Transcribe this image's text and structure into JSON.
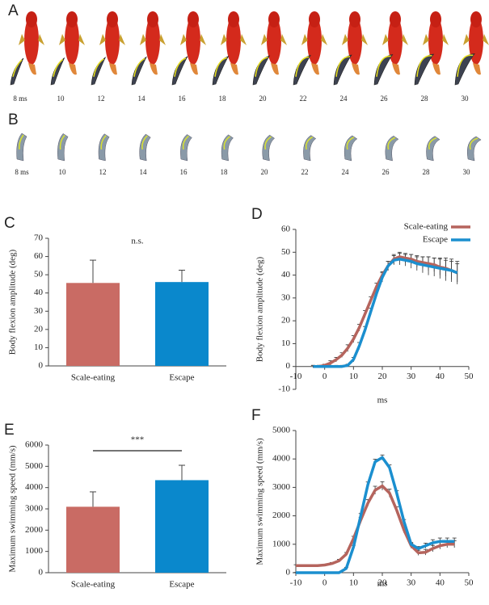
{
  "image_strips": [
    {
      "panel": "A",
      "time_labels": [
        "8 ms",
        "10",
        "12",
        "14",
        "16",
        "18",
        "20",
        "22",
        "24",
        "26",
        "28",
        "30"
      ]
    },
    {
      "panel": "B",
      "time_labels": [
        "8 ms",
        "10",
        "12",
        "14",
        "16",
        "18",
        "20",
        "22",
        "24",
        "26",
        "28",
        "30"
      ]
    }
  ],
  "chart_data": [
    {
      "type": "bar",
      "panel": "C",
      "ylabel": "Body flexion amplitude (deg)",
      "annotation": "n.s.",
      "categories": [
        "Scale-eating",
        "Escape"
      ],
      "values": [
        45.5,
        46
      ],
      "errors": [
        12.5,
        6.5
      ],
      "colors": [
        "#c96b64",
        "#0a88cc"
      ],
      "ylim": [
        0,
        70
      ],
      "yticks": [
        0,
        10,
        20,
        30,
        40,
        50,
        60,
        70
      ]
    },
    {
      "type": "line",
      "panel": "D",
      "ylabel": "Body flexion amplitude (deg)",
      "xlabel": "ms",
      "legend": "upper right",
      "x": [
        -4,
        -2,
        0,
        2,
        4,
        6,
        8,
        10,
        12,
        14,
        16,
        18,
        20,
        22,
        24,
        26,
        28,
        30,
        32,
        34,
        36,
        38,
        40,
        42,
        44,
        46
      ],
      "series": [
        {
          "name": "Scale-eating",
          "color": "#b5645d",
          "values": [
            0,
            0,
            0.5,
            1.5,
            3,
            5,
            8,
            12,
            17,
            23,
            29,
            35,
            40,
            44,
            47,
            48,
            47.5,
            47,
            46,
            45.5,
            45,
            44.5,
            43.5,
            43,
            42,
            41
          ],
          "errors": [
            0.5,
            0.5,
            0.5,
            1,
            1,
            1,
            1.5,
            1.5,
            1.5,
            1.5,
            1.5,
            1.5,
            1.5,
            2,
            2,
            2,
            2,
            2,
            2.5,
            2.5,
            3,
            3,
            3.5,
            3.5,
            4,
            4
          ]
        },
        {
          "name": "Escape",
          "color": "#1b8fcf",
          "values": [
            0,
            0,
            0,
            0,
            0,
            0,
            0.5,
            3,
            9,
            16,
            24,
            32,
            39,
            44,
            46.5,
            47,
            46.5,
            46,
            45,
            44.5,
            44,
            43.5,
            43,
            42.5,
            42,
            41
          ],
          "errors": [
            0.5,
            0.5,
            0.5,
            0.5,
            0.5,
            0.5,
            0.5,
            1,
            1.5,
            1.5,
            1.5,
            1.5,
            2,
            2,
            2,
            2.5,
            2.5,
            3,
            3,
            3.5,
            4,
            4,
            4.5,
            5,
            5,
            5
          ]
        }
      ],
      "xlim": [
        -10,
        50
      ],
      "xticks": [
        -10,
        0,
        10,
        20,
        30,
        40,
        50
      ],
      "ylim": [
        -10,
        60
      ],
      "yticks": [
        -10,
        0,
        10,
        20,
        30,
        40,
        50,
        60
      ]
    },
    {
      "type": "bar",
      "panel": "E",
      "ylabel": "Maximum swimming speed (mm/s)",
      "annotation": "***",
      "categories": [
        "Scale-eating",
        "Escape"
      ],
      "values": [
        3100,
        4350
      ],
      "errors": [
        700,
        700
      ],
      "colors": [
        "#c96b64",
        "#0a88cc"
      ],
      "ylim": [
        0,
        6000
      ],
      "yticks": [
        0,
        1000,
        2000,
        3000,
        4000,
        5000,
        6000
      ]
    },
    {
      "type": "line",
      "panel": "F",
      "ylabel": "Maximum swimming speed (mm/s)",
      "xlabel": "ms",
      "x": [
        -10,
        -7.5,
        -5,
        -2.5,
        0,
        2.5,
        5,
        7.5,
        10,
        12.5,
        15,
        17.5,
        20,
        22.5,
        25,
        27.5,
        30,
        32.5,
        35,
        37.5,
        40,
        42.5,
        45
      ],
      "series": [
        {
          "name": "Scale-eating",
          "color": "#b5645d",
          "values": [
            250,
            250,
            250,
            250,
            270,
            320,
            420,
            650,
            1200,
            1850,
            2450,
            2900,
            3050,
            2800,
            2200,
            1500,
            950,
            700,
            720,
            850,
            950,
            1000,
            1000
          ],
          "errors": [
            30,
            30,
            30,
            30,
            30,
            40,
            50,
            60,
            80,
            100,
            120,
            140,
            150,
            140,
            120,
            100,
            90,
            90,
            100,
            110,
            120,
            120,
            120
          ]
        },
        {
          "name": "Escape",
          "color": "#1b8fcf",
          "values": [
            0,
            0,
            0,
            0,
            0,
            0,
            0,
            150,
            900,
            2000,
            3100,
            3900,
            4050,
            3700,
            2800,
            1800,
            1000,
            850,
            950,
            1050,
            1100,
            1100,
            1100
          ],
          "errors": [
            10,
            10,
            10,
            10,
            10,
            10,
            20,
            40,
            60,
            80,
            90,
            90,
            90,
            90,
            80,
            70,
            60,
            70,
            90,
            110,
            120,
            120,
            120
          ]
        }
      ],
      "xlim": [
        -10,
        50
      ],
      "xticks": [
        -10,
        0,
        10,
        20,
        30,
        40,
        50
      ],
      "ylim": [
        0,
        5000
      ],
      "yticks": [
        0,
        1000,
        2000,
        3000,
        4000,
        5000
      ]
    }
  ]
}
